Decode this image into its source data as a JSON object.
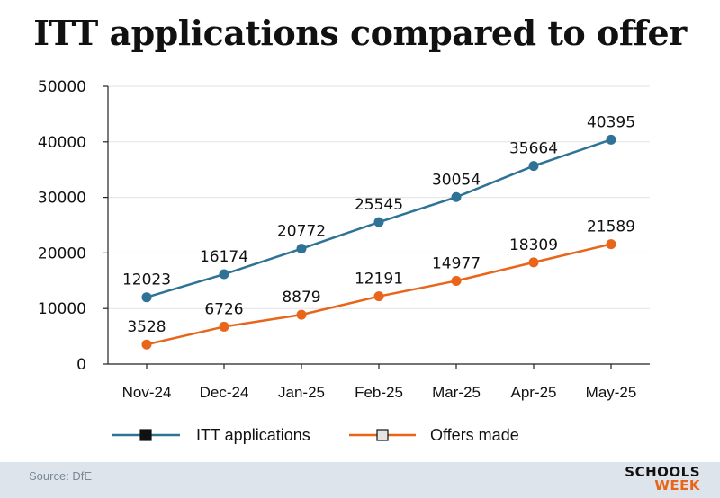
{
  "title": "ITT applications compared to offer",
  "chart_data": {
    "type": "line",
    "categories": [
      "Nov-24",
      "Dec-24",
      "Jan-25",
      "Feb-25",
      "Mar-25",
      "Apr-25",
      "May-25"
    ],
    "series": [
      {
        "name": "ITT applications",
        "values": [
          12023,
          16174,
          20772,
          25545,
          30054,
          35664,
          40395
        ],
        "color": "#2e7396"
      },
      {
        "name": "Offers made",
        "values": [
          3528,
          6726,
          8879,
          12191,
          14977,
          18309,
          21589
        ],
        "color": "#e8651a"
      }
    ],
    "yticks": [
      0,
      10000,
      20000,
      30000,
      40000,
      50000
    ],
    "ylim": [
      0,
      50000
    ],
    "grid": true,
    "legend": "bottom"
  },
  "footer": {
    "source": "Source: DfE",
    "logo_top": "SCHOOLS",
    "logo_bottom": "WEEK"
  }
}
